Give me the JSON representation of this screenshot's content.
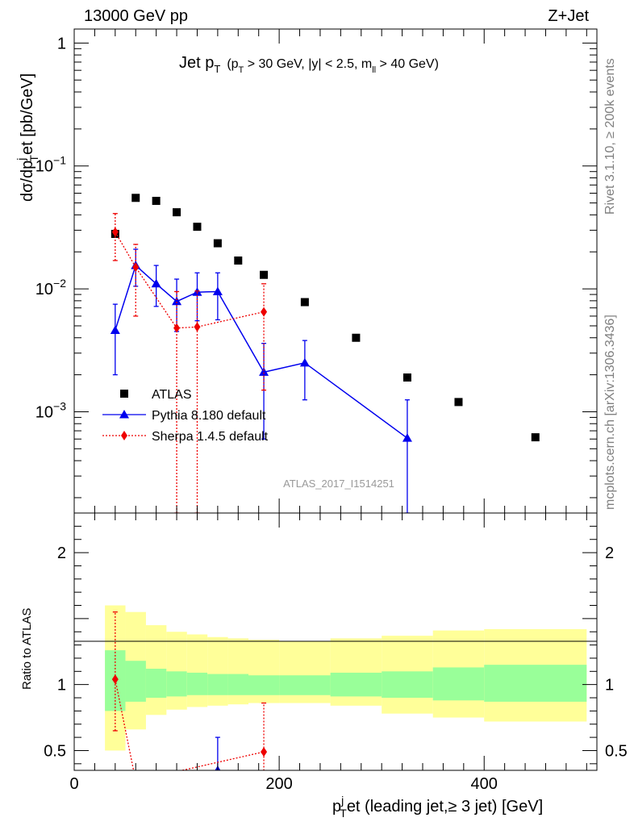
{
  "header": {
    "left": "13000 GeV pp",
    "right": "Z+Jet"
  },
  "side": {
    "rivet": "Rivet 3.1.10, ≥ 200k events",
    "mcplots": "mcplots.cern.ch [arXiv:1306.3436]"
  },
  "chart_data": [
    {
      "type": "scatter",
      "panel": "main",
      "title": {
        "main": "Jet p",
        "sub_t": "T",
        "cond_pre": "(p",
        "cond_t": "T",
        "cond_mid": " > 30 GeV, |y| < 2.5, m",
        "cond_ll": "ll",
        "cond_post": " > 40 GeV)"
      },
      "ylabel": {
        "pre": "dσ/dp",
        "sup": "j",
        "sub": "T",
        "post": "et [pb/GeV]"
      },
      "yscale": "log",
      "ylim": [
        0.00015,
        1.3
      ],
      "xlim": [
        0,
        510
      ],
      "y_ticks": [
        {
          "value": 1,
          "base": "1",
          "exp": ""
        },
        {
          "value": 0.1,
          "base": "10",
          "exp": "−1"
        },
        {
          "value": 0.01,
          "base": "10",
          "exp": "−2"
        },
        {
          "value": 0.001,
          "base": "10",
          "exp": "−3"
        }
      ],
      "watermark": "ATLAS_2017_I1514251",
      "legend_position": "lower-left",
      "series": [
        {
          "name": "ATLAS",
          "color": "#000000",
          "marker": "square",
          "points": [
            {
              "x": 40,
              "y": 0.028
            },
            {
              "x": 60,
              "y": 0.055
            },
            {
              "x": 80,
              "y": 0.052
            },
            {
              "x": 100,
              "y": 0.042
            },
            {
              "x": 120,
              "y": 0.032
            },
            {
              "x": 140,
              "y": 0.0235
            },
            {
              "x": 160,
              "y": 0.017
            },
            {
              "x": 185,
              "y": 0.013
            },
            {
              "x": 225,
              "y": 0.0078
            },
            {
              "x": 275,
              "y": 0.004
            },
            {
              "x": 325,
              "y": 0.0019
            },
            {
              "x": 375,
              "y": 0.0012
            },
            {
              "x": 450,
              "y": 0.00062
            }
          ]
        },
        {
          "name": "Pythia 8.180 default",
          "color": "#0000ee",
          "marker": "triangle",
          "line": "solid",
          "points": [
            {
              "x": 40,
              "y": 0.0046,
              "lo": 0.002,
              "hi": 0.0075
            },
            {
              "x": 60,
              "y": 0.0155,
              "lo": 0.0105,
              "hi": 0.021
            },
            {
              "x": 80,
              "y": 0.011,
              "lo": 0.0072,
              "hi": 0.0155
            },
            {
              "x": 100,
              "y": 0.0079,
              "lo": 0.0045,
              "hi": 0.012
            },
            {
              "x": 120,
              "y": 0.0094,
              "lo": 0.0055,
              "hi": 0.0135
            },
            {
              "x": 140,
              "y": 0.0095,
              "lo": 0.0056,
              "hi": 0.0135
            },
            {
              "x": 185,
              "y": 0.0021,
              "lo": 0.0006,
              "hi": 0.0036
            },
            {
              "x": 225,
              "y": 0.0025,
              "lo": 0.00125,
              "hi": 0.0038
            },
            {
              "x": 325,
              "y": 0.00061,
              "lo": 0.00015,
              "hi": 0.00125
            }
          ]
        },
        {
          "name": "Sherpa 1.4.5 default",
          "color": "#ee0000",
          "marker": "diamond",
          "line": "dotted",
          "points": [
            {
              "x": 40,
              "y": 0.029,
              "lo": 0.017,
              "hi": 0.041
            },
            {
              "x": 60,
              "y": 0.015,
              "lo": 0.006,
              "hi": 0.023
            },
            {
              "x": 100,
              "y": 0.0048,
              "lo": 0.00015,
              "hi": 0.0095
            },
            {
              "x": 120,
              "y": 0.0049,
              "lo": 0.00015,
              "hi": 0.0096
            },
            {
              "x": 185,
              "y": 0.0065,
              "lo": 0.0015,
              "hi": 0.011
            }
          ]
        }
      ]
    },
    {
      "type": "scatter",
      "panel": "ratio",
      "ylabel": "Ratio to ATLAS",
      "xlabel": {
        "pre": "p",
        "sup": "j",
        "sub": "T",
        "post": "et (leading jet,≥ 3 jet) [GeV]"
      },
      "ylim": [
        0.35,
        2.3
      ],
      "xlim": [
        0,
        510
      ],
      "x_ticks": [
        0,
        200,
        400
      ],
      "y_ticks": [
        "0.5",
        "1",
        "2"
      ],
      "bands": [
        {
          "x0": 30,
          "x1": 50,
          "stat": [
            0.8,
            1.26
          ],
          "tot": [
            0.5,
            1.6
          ]
        },
        {
          "x0": 50,
          "x1": 70,
          "stat": [
            0.87,
            1.18
          ],
          "tot": [
            0.66,
            1.55
          ]
        },
        {
          "x0": 70,
          "x1": 90,
          "stat": [
            0.9,
            1.12
          ],
          "tot": [
            0.77,
            1.45
          ]
        },
        {
          "x0": 90,
          "x1": 110,
          "stat": [
            0.91,
            1.1
          ],
          "tot": [
            0.81,
            1.4
          ]
        },
        {
          "x0": 110,
          "x1": 130,
          "stat": [
            0.92,
            1.09
          ],
          "tot": [
            0.83,
            1.38
          ]
        },
        {
          "x0": 130,
          "x1": 150,
          "stat": [
            0.92,
            1.08
          ],
          "tot": [
            0.84,
            1.36
          ]
        },
        {
          "x0": 150,
          "x1": 170,
          "stat": [
            0.92,
            1.08
          ],
          "tot": [
            0.85,
            1.35
          ]
        },
        {
          "x0": 170,
          "x1": 200,
          "stat": [
            0.92,
            1.07
          ],
          "tot": [
            0.86,
            1.34
          ]
        },
        {
          "x0": 200,
          "x1": 250,
          "stat": [
            0.92,
            1.07
          ],
          "tot": [
            0.86,
            1.33
          ]
        },
        {
          "x0": 250,
          "x1": 300,
          "stat": [
            0.91,
            1.09
          ],
          "tot": [
            0.84,
            1.35
          ]
        },
        {
          "x0": 300,
          "x1": 350,
          "stat": [
            0.9,
            1.1
          ],
          "tot": [
            0.78,
            1.37
          ]
        },
        {
          "x0": 350,
          "x1": 400,
          "stat": [
            0.88,
            1.13
          ],
          "tot": [
            0.75,
            1.41
          ]
        },
        {
          "x0": 400,
          "x1": 500,
          "stat": [
            0.87,
            1.15
          ],
          "tot": [
            0.72,
            1.42
          ]
        }
      ],
      "series": [
        {
          "name": "Pythia 8.180 default",
          "color": "#0000ee",
          "marker": "triangle",
          "line": "solid",
          "points": [
            {
              "x": 140,
              "y": 0.35,
              "lo": 0.35,
              "hi": 0.6
            }
          ]
        },
        {
          "name": "Sherpa 1.4.5 default",
          "color": "#ee0000",
          "marker": "diamond",
          "line": "dotted",
          "points": [
            {
              "x": 40,
              "y": 1.04,
              "lo": 0.65,
              "hi": 1.55
            },
            {
              "x": 60,
              "y": 0.27
            },
            {
              "x": 185,
              "y": 0.49,
              "lo": 0.2,
              "hi": 0.86
            }
          ]
        }
      ]
    }
  ]
}
